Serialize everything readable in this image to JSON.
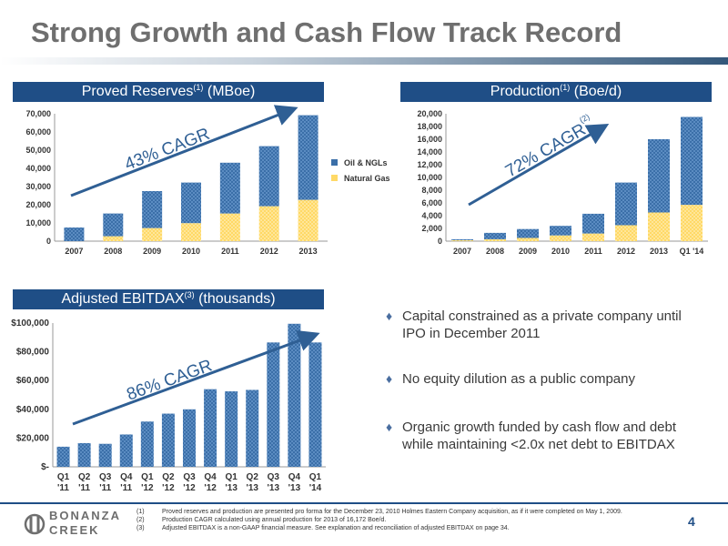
{
  "page": {
    "title": "Strong Growth and Cash Flow Track Record",
    "page_number": "4",
    "logo": {
      "line1": "BONANZA",
      "line2": "CREEK"
    }
  },
  "colors": {
    "navy": "#1f4e86",
    "oil": "#3b6fa8",
    "gas": "#ffd966",
    "arrow": "#2f5f94"
  },
  "panels": {
    "reserves": {
      "title": "Proved Reserves",
      "sup": "(1)",
      "unit": "(MBoe)"
    },
    "production": {
      "title": "Production",
      "sup": "(1)",
      "unit": "(Boe/d)"
    },
    "ebitdax": {
      "title": "Adjusted EBITDAX",
      "sup": "(3)",
      "unit": "(thousands)"
    }
  },
  "legend": {
    "oil": "Oil & NGLs",
    "gas": "Natural Gas"
  },
  "chart_data": [
    {
      "type": "bar",
      "stacked": true,
      "categories": [
        "2007",
        "2008",
        "2009",
        "2010",
        "2011",
        "2012",
        "2013"
      ],
      "series": [
        {
          "name": "Natural Gas",
          "values": [
            0,
            2700,
            7200,
            9900,
            15200,
            19200,
            22700
          ]
        },
        {
          "name": "Oil & NGLs",
          "values": [
            7500,
            12500,
            20300,
            22300,
            27900,
            33000,
            46500
          ]
        }
      ],
      "ylim": [
        0,
        70000
      ],
      "yticks": [
        0,
        10000,
        20000,
        30000,
        40000,
        50000,
        60000,
        70000
      ],
      "ytick_labels": [
        "0",
        "10,000",
        "20,000",
        "30,000",
        "40,000",
        "50,000",
        "60,000",
        "70,000"
      ],
      "annotation": "43% CAGR",
      "legend_position": "right"
    },
    {
      "type": "bar",
      "stacked": true,
      "categories": [
        "2007",
        "2008",
        "2009",
        "2010",
        "2011",
        "2012",
        "2013",
        "Q1 '14"
      ],
      "series": [
        {
          "name": "Natural Gas",
          "values": [
            150,
            300,
            500,
            900,
            1200,
            2500,
            4500,
            5700
          ]
        },
        {
          "name": "Oil & NGLs",
          "values": [
            150,
            1000,
            1400,
            1500,
            3100,
            6700,
            11500,
            13800
          ]
        }
      ],
      "ylim": [
        0,
        20000
      ],
      "yticks": [
        0,
        2000,
        4000,
        6000,
        8000,
        10000,
        12000,
        14000,
        16000,
        18000,
        20000
      ],
      "ytick_labels": [
        "0",
        "2,000",
        "4,000",
        "6,000",
        "8,000",
        "10,000",
        "12,000",
        "14,000",
        "16,000",
        "18,000",
        "20,000"
      ],
      "annotation": "72% CAGR",
      "annotation_sup": "(2)"
    },
    {
      "type": "bar",
      "categories_top": [
        "Q1",
        "Q2",
        "Q3",
        "Q4",
        "Q1",
        "Q2",
        "Q3",
        "Q4",
        "Q1",
        "Q2",
        "Q3",
        "Q4",
        "Q1"
      ],
      "categories_bottom": [
        "'11",
        "'11",
        "'11",
        "'11",
        "'12",
        "'12",
        "'12",
        "'12",
        "'13",
        "'13",
        "'13",
        "'13",
        "'14"
      ],
      "values": [
        14000,
        16500,
        16000,
        22500,
        31500,
        37000,
        40000,
        54000,
        52500,
        53500,
        86500,
        99500,
        86500
      ],
      "ylim": [
        0,
        100000
      ],
      "yticks": [
        0,
        20000,
        40000,
        60000,
        80000,
        100000
      ],
      "ytick_labels": [
        "$-",
        "$20,000",
        "$40,000",
        "$60,000",
        "$80,000",
        "$100,000"
      ],
      "annotation": "86% CAGR"
    }
  ],
  "bullets": [
    "Capital constrained as a private company until IPO in December 2011",
    "No equity dilution as a public company",
    "Organic growth funded by cash flow and debt while maintaining <2.0x net debt to EBITDAX"
  ],
  "footnotes": [
    {
      "num": "(1)",
      "text": "Proved reserves and production are presented pro forma for the December 23, 2010 Holmes Eastern Company acquisition, as if it were completed on May 1, 2009."
    },
    {
      "num": "(2)",
      "text": "Production CAGR calculated using annual production for 2013 of 16,172 Boe/d."
    },
    {
      "num": "(3)",
      "text": "Adjusted EBITDAX is a non-GAAP financial measure. See explanation and reconciliation of adjusted EBITDAX on page 34."
    }
  ]
}
